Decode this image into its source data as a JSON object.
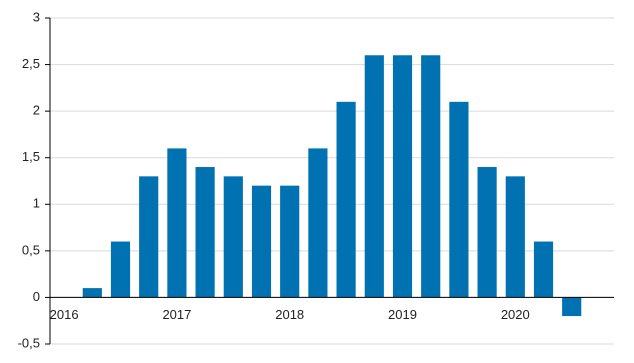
{
  "chart_data": {
    "type": "bar",
    "categories": [
      "2016",
      null,
      null,
      null,
      "2017",
      null,
      null,
      null,
      "2018",
      null,
      null,
      null,
      "2019",
      null,
      null,
      null,
      "2020",
      null,
      null,
      null
    ],
    "values": [
      null,
      0.1,
      0.6,
      1.3,
      1.6,
      1.4,
      1.3,
      1.2,
      1.2,
      1.6,
      2.1,
      2.6,
      2.6,
      2.6,
      2.1,
      1.4,
      1.3,
      0.6,
      -0.2,
      null
    ],
    "color": "#0072b2",
    "ylim": [
      -0.5,
      3
    ],
    "yticks": [
      {
        "value": -0.5,
        "label": "-0,5"
      },
      0,
      {
        "value": 0.5,
        "label": "0,5"
      },
      1,
      {
        "value": 1.5,
        "label": "1,5"
      },
      2,
      {
        "value": 2.5,
        "label": "2,5"
      },
      3
    ],
    "grid": true
  }
}
